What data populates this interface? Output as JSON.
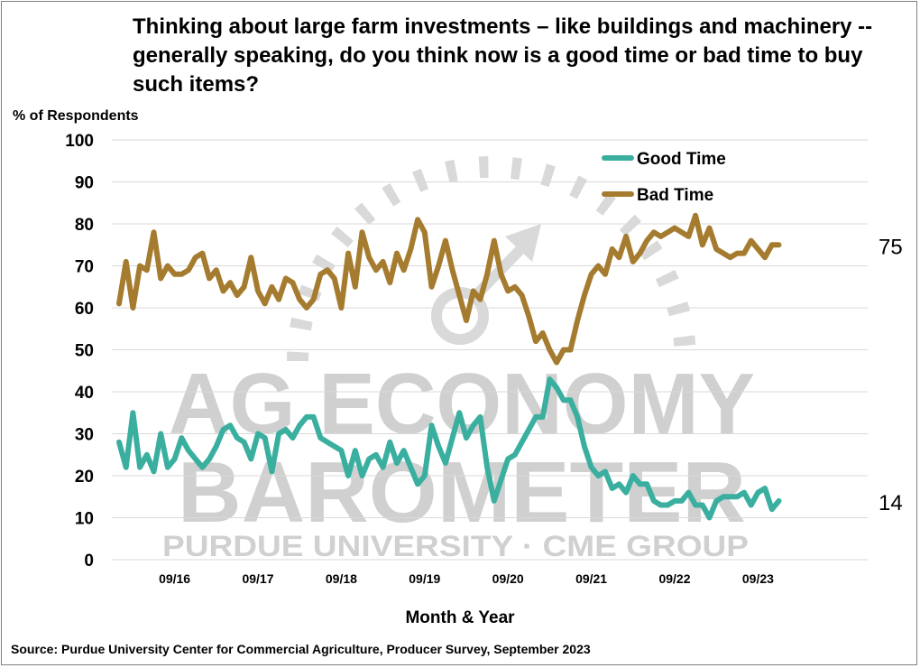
{
  "title": "Thinking about large farm investments – like buildings and machinery -- generally speaking, do you think now is a good time or bad time to buy such items?",
  "source": "Source: Purdue University Center for Commercial Agriculture, Producer Survey, September 2023",
  "watermark": {
    "line1": "AG ECONOMY",
    "line2": "BAROMETER",
    "line3": "PURDUE UNIVERSITY · CME GROUP"
  },
  "colors": {
    "good": "#3aaf9f",
    "bad": "#a57c2f",
    "watermark": "#d0d0d0"
  },
  "chart_data": {
    "type": "line",
    "ylabel": "% of Respondents",
    "xlabel": "Month & Year",
    "ylim": [
      0,
      100
    ],
    "yticks": [
      0,
      10,
      20,
      30,
      40,
      50,
      60,
      70,
      80,
      90,
      100
    ],
    "xticks": [
      "09/16",
      "09/17",
      "09/18",
      "09/19",
      "09/20",
      "09/21",
      "09/22",
      "09/23"
    ],
    "legend_position": "top-right",
    "grid": "horizontal",
    "series": [
      {
        "name": "Good Time",
        "key": "good",
        "end_label": "14",
        "values": [
          28,
          22,
          35,
          22,
          25,
          21,
          30,
          22,
          24,
          29,
          26,
          24,
          22,
          24,
          27,
          31,
          32,
          29,
          28,
          24,
          30,
          29,
          21,
          30,
          31,
          29,
          32,
          34,
          34,
          29,
          28,
          27,
          26,
          20,
          26,
          20,
          24,
          25,
          22,
          28,
          23,
          26,
          22,
          18,
          20,
          32,
          27,
          23,
          29,
          35,
          29,
          32,
          34,
          22,
          14,
          19,
          24,
          25,
          28,
          31,
          34,
          34,
          43,
          41,
          38,
          38,
          34,
          27,
          22,
          20,
          21,
          17,
          18,
          16,
          20,
          18,
          18,
          14,
          13,
          13,
          14,
          14,
          16,
          13,
          13,
          10,
          14,
          15,
          15,
          15,
          16,
          13,
          16,
          17,
          12,
          14
        ]
      },
      {
        "name": "Bad Time",
        "key": "bad",
        "end_label": "75",
        "values": [
          61,
          71,
          60,
          70,
          69,
          78,
          67,
          70,
          68,
          68,
          69,
          72,
          73,
          67,
          69,
          64,
          66,
          63,
          65,
          72,
          64,
          61,
          65,
          62,
          67,
          66,
          62,
          60,
          62,
          68,
          69,
          67,
          60,
          73,
          65,
          78,
          72,
          69,
          71,
          66,
          73,
          69,
          74,
          81,
          78,
          65,
          70,
          76,
          69,
          63,
          57,
          64,
          62,
          68,
          76,
          68,
          64,
          65,
          63,
          58,
          52,
          54,
          50,
          47,
          50,
          50,
          57,
          63,
          68,
          70,
          68,
          74,
          72,
          77,
          71,
          73,
          76,
          78,
          77,
          78,
          79,
          78,
          77,
          82,
          75,
          79,
          74,
          73,
          72,
          73,
          73,
          76,
          74,
          72,
          75,
          75
        ]
      }
    ]
  }
}
